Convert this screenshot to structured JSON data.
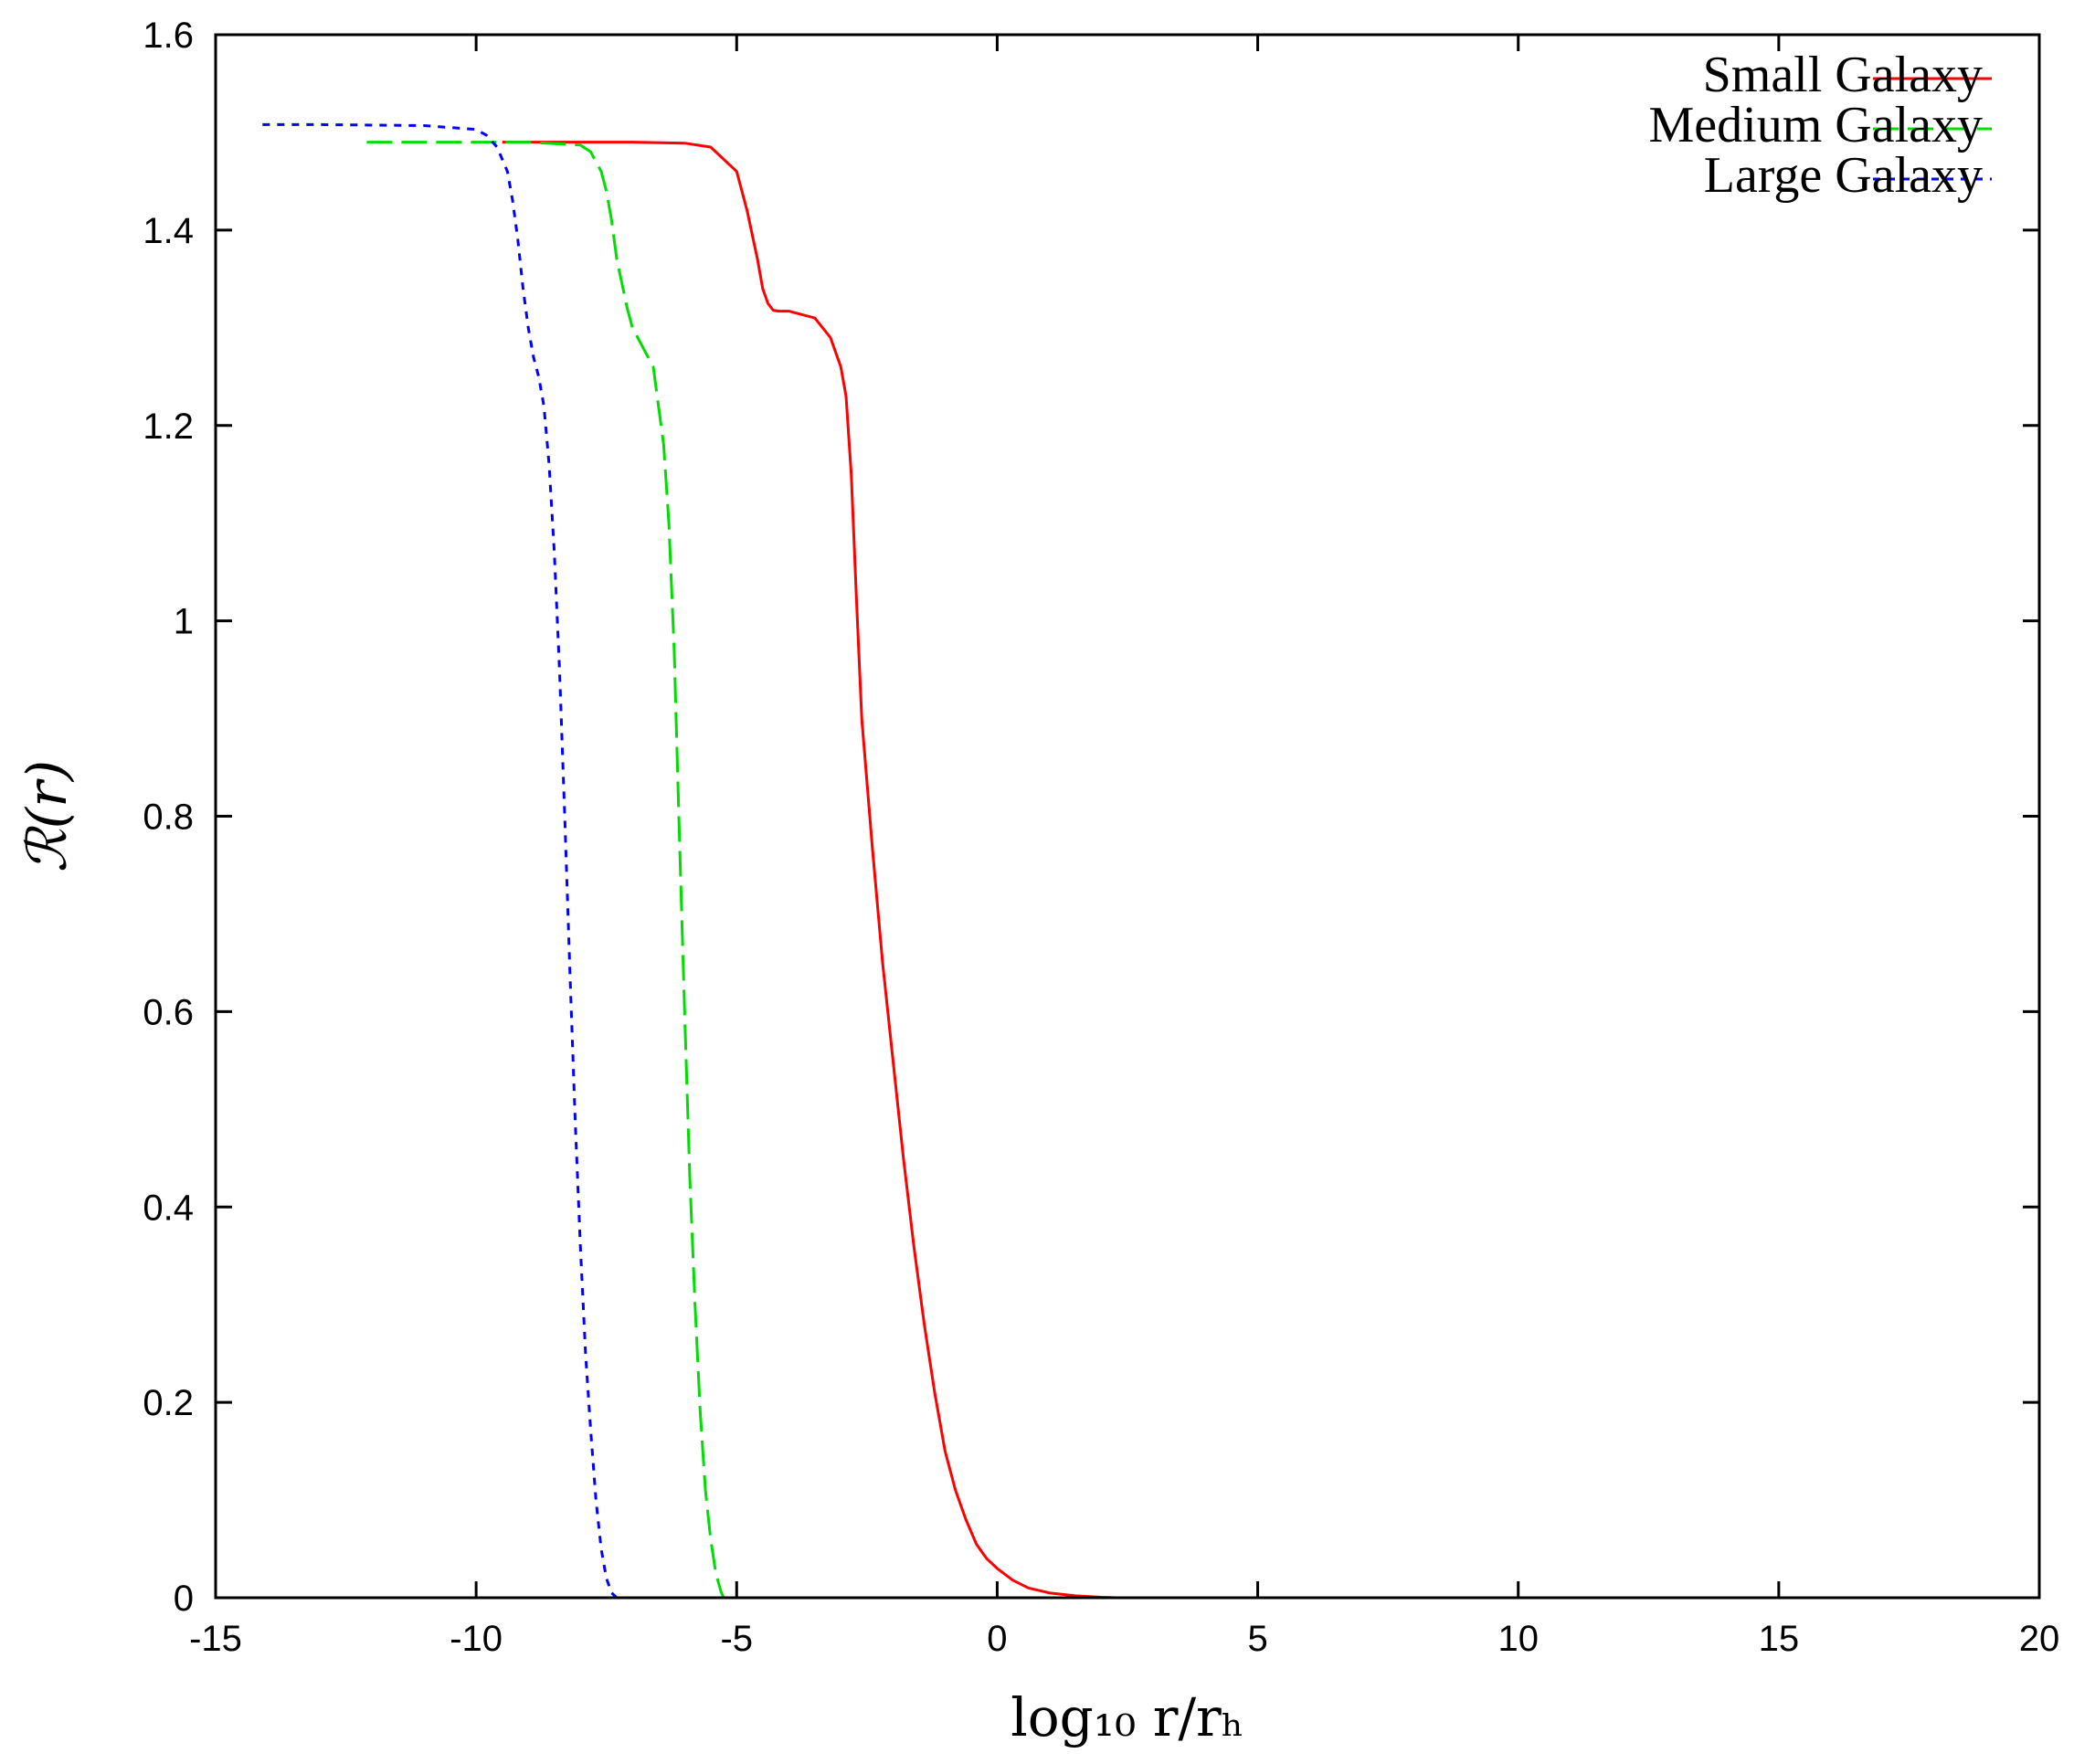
{
  "chart_data": {
    "type": "line",
    "title": "",
    "xlabel": "log₁₀ r/rₕ",
    "ylabel": "ℛ(r)",
    "xlim": [
      -15,
      20
    ],
    "ylim": [
      0,
      1.6
    ],
    "xticks": [
      -15,
      -10,
      -5,
      0,
      5,
      10,
      15,
      20
    ],
    "xtick_labels": [
      "-15",
      "-10",
      "-5",
      "0",
      "5",
      "10",
      "15",
      "20"
    ],
    "yticks": [
      0,
      0.2,
      0.4,
      0.6,
      0.8,
      1.0,
      1.2,
      1.4,
      1.6
    ],
    "ytick_labels": [
      "0",
      "0.2",
      "0.4",
      "0.6",
      "0.8",
      "1",
      "1.2",
      "1.4",
      "1.6"
    ],
    "grid": false,
    "legend_position": "top-right",
    "series": [
      {
        "name": "Small Galaxy",
        "color": "#ff0000",
        "dash": "solid",
        "x": [
          -9.5,
          -7,
          -6,
          -5.5,
          -5.0,
          -4.8,
          -4.6,
          -4.5,
          -4.4,
          -4.3,
          -4.2,
          -4.0,
          -3.5,
          -3.2,
          -3.0,
          -2.9,
          -2.8,
          -2.7,
          -2.6,
          -2.4,
          -2.2,
          -2.0,
          -1.8,
          -1.6,
          -1.4,
          -1.2,
          -1.0,
          -0.8,
          -0.6,
          -0.4,
          -0.2,
          0.0,
          0.3,
          0.6,
          1.0,
          1.5,
          2.0,
          2.3
        ],
        "y": [
          1.49,
          1.49,
          1.489,
          1.485,
          1.46,
          1.42,
          1.37,
          1.34,
          1.325,
          1.318,
          1.317,
          1.317,
          1.31,
          1.29,
          1.26,
          1.23,
          1.15,
          1.02,
          0.9,
          0.77,
          0.65,
          0.55,
          0.45,
          0.36,
          0.28,
          0.21,
          0.15,
          0.11,
          0.08,
          0.055,
          0.04,
          0.03,
          0.018,
          0.01,
          0.005,
          0.002,
          0.0005,
          0.0
        ],
        "marks": "hidden"
      },
      {
        "name": "Medium Galaxy",
        "color": "#00dd00",
        "dash": "long-dash",
        "x": [
          -12.1,
          -11.0,
          -10.0,
          -9.0,
          -8.0,
          -7.8,
          -7.6,
          -7.5,
          -7.4,
          -7.3,
          -7.1,
          -7.0,
          -6.8,
          -6.6,
          -6.5,
          -6.4,
          -6.3,
          -6.2,
          -6.1,
          -6.0,
          -5.9,
          -5.8,
          -5.7,
          -5.6,
          -5.5,
          -5.4,
          -5.3,
          -5.25
        ],
        "y": [
          1.49,
          1.49,
          1.49,
          1.49,
          1.487,
          1.48,
          1.46,
          1.44,
          1.41,
          1.37,
          1.32,
          1.3,
          1.28,
          1.26,
          1.22,
          1.18,
          1.1,
          0.97,
          0.78,
          0.6,
          0.43,
          0.3,
          0.19,
          0.11,
          0.06,
          0.025,
          0.006,
          0.0
        ],
        "marks": "hidden"
      },
      {
        "name": "Large Galaxy",
        "color": "#0000ff",
        "dash": "short-dash",
        "x": [
          -14.1,
          -13.0,
          -11.0,
          -10.0,
          -9.8,
          -9.6,
          -9.4,
          -9.3,
          -9.2,
          -9.1,
          -9.0,
          -8.9,
          -8.8,
          -8.7,
          -8.6,
          -8.5,
          -8.4,
          -8.3,
          -8.2,
          -8.1,
          -8.0,
          -7.9,
          -7.8,
          -7.7,
          -7.6,
          -7.5,
          -7.4,
          -7.3
        ],
        "y": [
          1.508,
          1.508,
          1.507,
          1.503,
          1.497,
          1.485,
          1.46,
          1.43,
          1.39,
          1.34,
          1.3,
          1.27,
          1.25,
          1.22,
          1.16,
          1.07,
          0.95,
          0.8,
          0.64,
          0.49,
          0.36,
          0.25,
          0.17,
          0.1,
          0.05,
          0.02,
          0.005,
          0.0
        ],
        "marks": "hidden"
      }
    ]
  }
}
